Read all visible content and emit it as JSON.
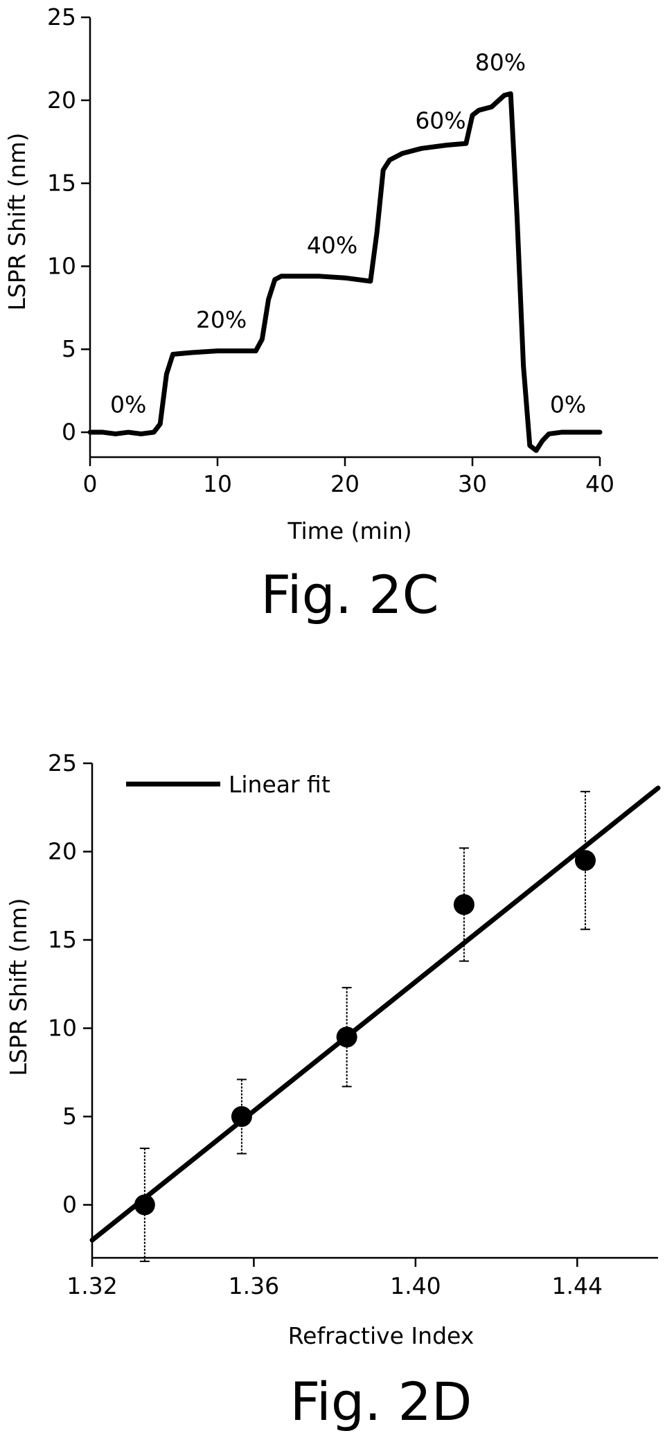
{
  "chart_data": [
    {
      "type": "line",
      "title": "",
      "caption": "Fig. 2C",
      "xlabel": "Time (min)",
      "ylabel": "LSPR Shift (nm)",
      "xlim": [
        0,
        40
      ],
      "ylim": [
        -1.5,
        25
      ],
      "xticks": [
        0,
        10,
        20,
        30,
        40
      ],
      "yticks": [
        0,
        5,
        10,
        15,
        20,
        25
      ],
      "grid": false,
      "series": [
        {
          "x": [
            0,
            1,
            2,
            3,
            4,
            5,
            5.5,
            6,
            6.5,
            8,
            10,
            12,
            13,
            13.5,
            14,
            14.5,
            15,
            16,
            18,
            20,
            22,
            22.5,
            23,
            23.5,
            24.5,
            26,
            28,
            29.5,
            30,
            30.5,
            31.5,
            32.5,
            33,
            33.5,
            34,
            34.5,
            35,
            35.5,
            36,
            37,
            38,
            40
          ],
          "y": [
            0,
            0,
            -0.1,
            0,
            -0.1,
            0,
            0.5,
            3.5,
            4.7,
            4.8,
            4.9,
            4.9,
            4.9,
            5.6,
            8,
            9.2,
            9.4,
            9.4,
            9.4,
            9.3,
            9.1,
            12,
            15.8,
            16.4,
            16.8,
            17.1,
            17.3,
            17.4,
            19.1,
            19.4,
            19.6,
            20.3,
            20.4,
            13,
            4,
            -0.8,
            -1.1,
            -0.5,
            -0.1,
            0,
            0,
            0
          ]
        }
      ],
      "annotations": [
        {
          "text": "0%",
          "x": 3,
          "y": 1.2
        },
        {
          "text": "20%",
          "x": 10.3,
          "y": 6.3
        },
        {
          "text": "40%",
          "x": 19,
          "y": 10.8
        },
        {
          "text": "60%",
          "x": 27.5,
          "y": 18.3
        },
        {
          "text": "80%",
          "x": 32.2,
          "y": 21.8
        },
        {
          "text": "0%",
          "x": 37.5,
          "y": 1.2
        }
      ]
    },
    {
      "type": "scatter",
      "title": "",
      "caption": "Fig. 2D",
      "xlabel": "Refractive Index",
      "ylabel": "LSPR Shift (nm)",
      "xlim": [
        1.32,
        1.46
      ],
      "ylim": [
        -3,
        25
      ],
      "xticks": [
        "1.32",
        "1.36",
        "1.40",
        "1.44"
      ],
      "yticks": [
        0,
        5,
        10,
        15,
        20,
        25
      ],
      "grid": false,
      "legend": {
        "position": "top-left",
        "entries": [
          "Linear fit"
        ]
      },
      "points": {
        "x": [
          1.333,
          1.357,
          1.383,
          1.412,
          1.442
        ],
        "y": [
          0,
          5,
          9.5,
          17,
          19.5
        ],
        "error": [
          3.2,
          2.1,
          2.8,
          3.2,
          3.9
        ]
      },
      "fit": {
        "name": "Linear fit",
        "x": [
          1.32,
          1.46
        ],
        "y": [
          -2,
          23.6
        ]
      }
    }
  ]
}
